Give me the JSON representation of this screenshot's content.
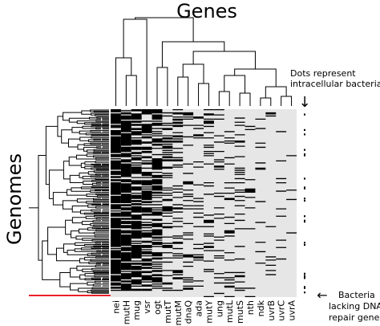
{
  "figure": {
    "title_genes": "Genes",
    "title_genomes": "Genomes",
    "annotation_dots": [
      "Dots represent",
      "intracellular bacteria"
    ],
    "annotation_bacteria": [
      "Bacteria",
      "lacking DNA",
      "repair genes"
    ],
    "arrow_down_glyph": "↓",
    "arrow_left_glyph": "←",
    "heatmap_fill_color": "#000000",
    "heatmap_background_color": "#e6e6e6",
    "highlight_color": "#e8202a"
  },
  "chart_data": {
    "type": "heatmap",
    "genes": [
      "nei",
      "mutH",
      "mug",
      "vsr",
      "ogt",
      "mutT",
      "mutM",
      "dnaQ",
      "ada",
      "mutY",
      "ung",
      "mutL",
      "mutS",
      "nth",
      "ndk",
      "uvrB",
      "uvrC",
      "uvrA"
    ],
    "gene_presence_fraction": [
      0.92,
      0.82,
      0.72,
      0.58,
      0.42,
      0.22,
      0.22,
      0.14,
      0.12,
      0.14,
      0.12,
      0.12,
      0.12,
      0.06,
      0.04,
      0.04,
      0.04,
      0.04
    ],
    "legend": "none"
  }
}
